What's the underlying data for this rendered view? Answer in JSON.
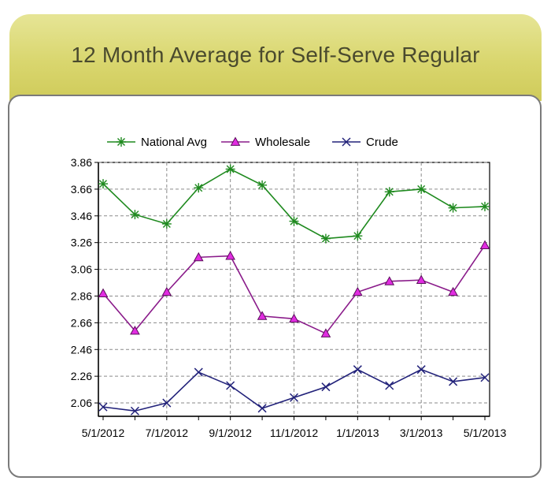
{
  "header": {
    "title": "12 Month Average for Self-Serve Regular"
  },
  "colors": {
    "national": "#1f8a1f",
    "wholesale": "#8a1b8a",
    "wholesale_marker": "#e12ce1",
    "crude": "#22227a",
    "grid": "#8a8a8a",
    "banner": "#d9d66e"
  },
  "chart_data": {
    "type": "line",
    "title": "",
    "xlabel": "",
    "ylabel": "",
    "ylim": [
      1.96,
      3.86
    ],
    "yticks": [
      "3.86",
      "3.66",
      "3.46",
      "3.26",
      "3.06",
      "2.86",
      "2.66",
      "2.46",
      "2.26",
      "2.06"
    ],
    "x": [
      "5/1/2012",
      "6/1/2012",
      "7/1/2012",
      "8/1/2012",
      "9/1/2012",
      "10/1/2012",
      "11/1/2012",
      "12/1/2012",
      "1/1/2013",
      "2/1/2013",
      "3/1/2013",
      "4/1/2013",
      "5/1/2013"
    ],
    "xtick_labels": [
      "5/1/2012",
      "7/1/2012",
      "9/1/2012",
      "11/1/2012",
      "1/1/2013",
      "3/1/2013",
      "5/1/2013"
    ],
    "grid": true,
    "legend": "top",
    "series": [
      {
        "name": "National Avg",
        "marker": "star",
        "values": [
          3.7,
          3.47,
          3.4,
          3.67,
          3.81,
          3.69,
          3.42,
          3.29,
          3.31,
          3.64,
          3.66,
          3.52,
          3.53
        ]
      },
      {
        "name": "Wholesale",
        "marker": "triangle",
        "values": [
          2.88,
          2.6,
          2.89,
          3.15,
          3.16,
          2.71,
          2.69,
          2.58,
          2.89,
          2.97,
          2.98,
          2.89,
          3.24
        ]
      },
      {
        "name": "Crude",
        "marker": "x",
        "values": [
          2.03,
          2.0,
          2.06,
          2.29,
          2.19,
          2.02,
          2.1,
          2.18,
          2.31,
          2.19,
          2.31,
          2.22,
          2.25
        ]
      }
    ]
  }
}
